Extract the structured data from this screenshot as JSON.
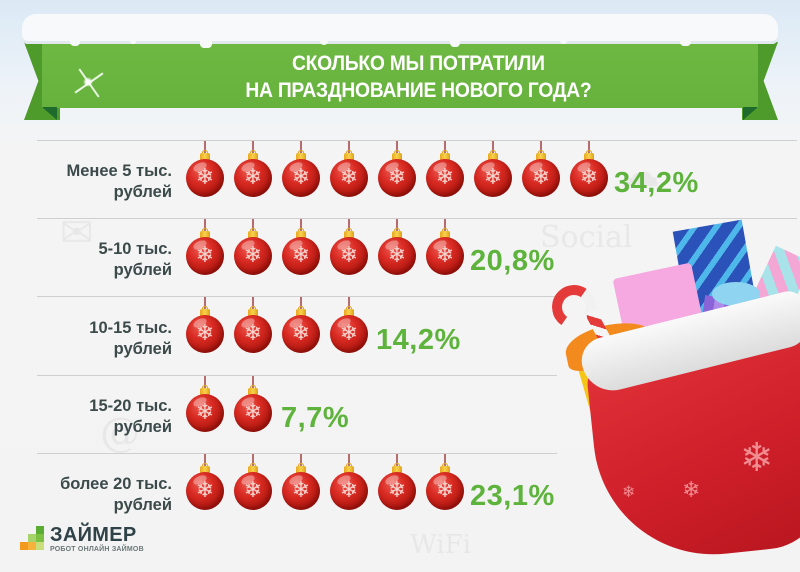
{
  "title": {
    "line1": "СКОЛЬКО МЫ ПОТРАТИЛИ",
    "line2": "НА ПРАЗДНОВАНИЕ  НОВОГО ГОДА?"
  },
  "rows": [
    {
      "label_line1": "Менее 5 тыс.",
      "label_line2": "рублей",
      "ornaments": 9,
      "value": "34,2%"
    },
    {
      "label_line1": "5-10 тыс.",
      "label_line2": "рублей",
      "ornaments": 6,
      "value": "20,8%"
    },
    {
      "label_line1": "10-15 тыс.",
      "label_line2": "рублей",
      "ornaments": 4,
      "value": "14,2%"
    },
    {
      "label_line1": "15-20 тыс.",
      "label_line2": "рублей",
      "ornaments": 2,
      "value": "7,7%"
    },
    {
      "label_line1": "более 20 тыс.",
      "label_line2": "рублей",
      "ornaments": 6,
      "value": "23,1%"
    }
  ],
  "logo": {
    "name": "ЗАЙМЕР",
    "tagline": "РОБОТ ОНЛАЙН ЗАЙМОВ"
  },
  "icons": {
    "ornament": "christmas-ornament-icon",
    "snowflake": "❄"
  },
  "colors": {
    "banner_green": "#6ab73f",
    "percent_green": "#5db33b",
    "ornament_red": "#d02a22",
    "label_text": "#3c4a4a",
    "divider": "#cfcfcf"
  },
  "chart_data": {
    "type": "bar",
    "title": "СКОЛЬКО МЫ ПОТРАТИЛИ НА ПРАЗДНОВАНИЕ НОВОГО ГОДА?",
    "categories": [
      "Менее 5 тыс. рублей",
      "5-10 тыс. рублей",
      "10-15 тыс. рублей",
      "15-20 тыс. рублей",
      "более 20 тыс. рублей"
    ],
    "values": [
      34.2,
      20.8,
      14.2,
      7.7,
      23.1
    ],
    "unit": "%",
    "orientation": "horizontal",
    "pictogram": "christmas ornaments",
    "pictogram_counts": [
      9,
      6,
      4,
      2,
      6
    ],
    "xlabel": "",
    "ylabel": "",
    "grid": false,
    "legend": null
  }
}
